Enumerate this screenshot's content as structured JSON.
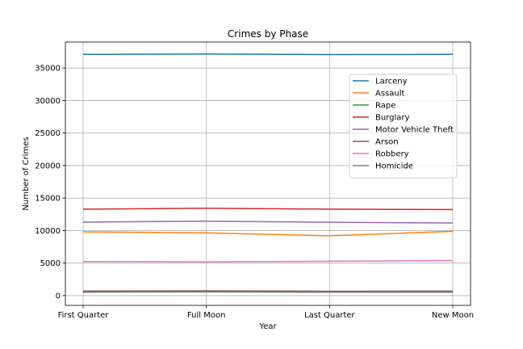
{
  "chart_data": {
    "type": "line",
    "title": "Crimes by Phase",
    "xlabel": "Year",
    "ylabel": "Number of Crimes",
    "categories": [
      "First Quarter",
      "Full Moon",
      "Last Quarter",
      "New Moon"
    ],
    "ylim": [
      -1500,
      39000
    ],
    "yticks": [
      0,
      5000,
      10000,
      15000,
      20000,
      25000,
      30000,
      35000
    ],
    "grid": true,
    "legend_position": "upper-right",
    "series": [
      {
        "name": "Larceny",
        "color": "#1f77b4",
        "values": [
          37100,
          37150,
          37080,
          37100
        ]
      },
      {
        "name": "Assault",
        "color": "#ff7f0e",
        "values": [
          9800,
          9650,
          9200,
          9880
        ]
      },
      {
        "name": "Rape",
        "color": "#2ca02c",
        "values": [
          580,
          620,
          560,
          570
        ]
      },
      {
        "name": "Burglary",
        "color": "#d62728",
        "values": [
          13300,
          13450,
          13300,
          13230
        ]
      },
      {
        "name": "Motor Vehicle Theft",
        "color": "#9467bd",
        "values": [
          11300,
          11450,
          11280,
          11170
        ]
      },
      {
        "name": "Arson",
        "color": "#8c564b",
        "values": [
          700,
          740,
          680,
          690
        ]
      },
      {
        "name": "Robbery",
        "color": "#e377c2",
        "values": [
          5250,
          5200,
          5280,
          5380
        ]
      },
      {
        "name": "Homicide",
        "color": "#7f7f7f",
        "values": [
          520,
          560,
          510,
          520
        ]
      }
    ]
  }
}
